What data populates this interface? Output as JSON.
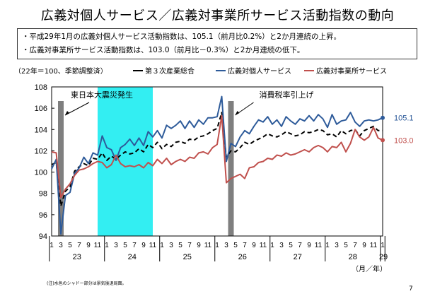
{
  "title": "広義対個人サービス／広義対事業所サービス活動指数の動向",
  "bullets": [
    "・平成29年1月の広義対個人サービス活動指数は、105.1（前月比0.2%）と2か月連続の上昇。",
    "・広義対事業所サービス活動指数は、103.0（前月比－0.3%）と2か月連続の低下。"
  ],
  "footnote": "(注)水色のシャドー部分は景気後退局面。",
  "page_number": "7",
  "chart_data": {
    "type": "line",
    "unit_note": "（22年＝100、季節調整済）",
    "x_unit": "（月／年）",
    "ylim": [
      94,
      108
    ],
    "y_ticks": [
      "94",
      "96",
      "98",
      "100",
      "102",
      "104",
      "106",
      "108"
    ],
    "month_labels": [
      "1",
      "3",
      "5",
      "7",
      "9",
      "11",
      "1",
      "3",
      "5",
      "7",
      "9",
      "11",
      "1",
      "3",
      "5",
      "7",
      "9",
      "11",
      "1",
      "3",
      "5",
      "7",
      "9",
      "11",
      "1",
      "3",
      "5",
      "7",
      "9",
      "11",
      "1",
      "3",
      "5",
      "7",
      "9",
      "11",
      "1"
    ],
    "year_labels": [
      "23",
      "24",
      "25",
      "26",
      "27",
      "28",
      "29"
    ],
    "x": [
      "23/1",
      "23/2",
      "23/3",
      "23/4",
      "23/5",
      "23/6",
      "23/7",
      "23/8",
      "23/9",
      "23/10",
      "23/11",
      "23/12",
      "24/1",
      "24/2",
      "24/3",
      "24/4",
      "24/5",
      "24/6",
      "24/7",
      "24/8",
      "24/9",
      "24/10",
      "24/11",
      "24/12",
      "25/1",
      "25/2",
      "25/3",
      "25/4",
      "25/5",
      "25/6",
      "25/7",
      "25/8",
      "25/9",
      "25/10",
      "25/11",
      "25/12",
      "26/1",
      "26/2",
      "26/3",
      "26/4",
      "26/5",
      "26/6",
      "26/7",
      "26/8",
      "26/9",
      "26/10",
      "26/11",
      "26/12",
      "27/1",
      "27/2",
      "27/3",
      "27/4",
      "27/5",
      "27/6",
      "27/7",
      "27/8",
      "27/9",
      "27/10",
      "27/11",
      "27/12",
      "28/1",
      "28/2",
      "28/3",
      "28/4",
      "28/5",
      "28/6",
      "28/7",
      "28/8",
      "28/9",
      "28/10",
      "28/11",
      "28/12",
      "29/1"
    ],
    "series": [
      {
        "name": "第３次産業総合",
        "color": "#000000",
        "dash": "6,4",
        "values": [
          100.7,
          100.9,
          96.8,
          98.2,
          98.6,
          100.1,
          100.5,
          100.8,
          100.6,
          101.3,
          101.2,
          101.8,
          101.1,
          101.5,
          101.2,
          101.6,
          101.9,
          101.7,
          101.8,
          102.2,
          101.9,
          102.6,
          102.3,
          102.8,
          102.2,
          102.6,
          102.4,
          102.8,
          102.9,
          102.7,
          103.1,
          103.0,
          103.3,
          103.4,
          103.6,
          103.9,
          104.1,
          105.6,
          101.4,
          102.0,
          101.9,
          102.3,
          102.8,
          102.6,
          102.9,
          103.1,
          103.3,
          103.6,
          103.4,
          103.3,
          103.5,
          103.8,
          103.6,
          103.4,
          103.5,
          103.8,
          103.7,
          103.8,
          104.0,
          103.9,
          103.5,
          103.6,
          103.3,
          103.9,
          103.6,
          103.9,
          104.0,
          103.4,
          103.9,
          104.1,
          104.3,
          103.9,
          103.9
        ]
      },
      {
        "name": "広義対個人サービス",
        "color": "#2E5B9A",
        "dash": "",
        "values": [
          100.3,
          101.2,
          94.2,
          97.8,
          98.1,
          99.9,
          100.4,
          101.4,
          100.8,
          101.8,
          101.6,
          103.4,
          102.3,
          102.1,
          101.1,
          102.3,
          102.6,
          103.1,
          102.5,
          103.2,
          102.5,
          103.8,
          103.3,
          103.9,
          103.2,
          104.4,
          104.1,
          104.4,
          104.8,
          104.1,
          104.8,
          104.2,
          104.9,
          104.5,
          105.1,
          105.1,
          105.2,
          107.1,
          101.0,
          102.7,
          102.4,
          103.3,
          103.9,
          103.6,
          104.3,
          104.9,
          104.7,
          105.2,
          104.5,
          104.9,
          104.3,
          105.2,
          104.8,
          104.5,
          105.0,
          104.8,
          105.3,
          104.8,
          105.4,
          105.0,
          104.2,
          105.4,
          104.5,
          104.8,
          104.9,
          105.6,
          104.7,
          104.3,
          104.8,
          104.9,
          104.8,
          104.9,
          105.1
        ]
      },
      {
        "name": "広義対事業所サービス",
        "color": "#C0504D",
        "dash": "",
        "values": [
          101.9,
          101.8,
          97.6,
          98.4,
          98.9,
          99.7,
          100.2,
          100.3,
          100.5,
          100.8,
          101.0,
          100.9,
          100.4,
          100.7,
          101.6,
          100.8,
          100.5,
          100.6,
          100.5,
          100.7,
          100.4,
          100.9,
          100.6,
          101.2,
          100.8,
          101.3,
          100.7,
          101.0,
          101.2,
          101.0,
          101.4,
          101.3,
          101.8,
          101.9,
          101.7,
          102.3,
          102.6,
          105.3,
          99.0,
          99.4,
          99.6,
          99.8,
          99.4,
          100.4,
          100.5,
          100.9,
          101.0,
          101.3,
          101.2,
          101.6,
          101.5,
          101.8,
          101.6,
          101.7,
          101.9,
          102.1,
          101.9,
          102.3,
          102.5,
          102.3,
          101.9,
          102.4,
          102.3,
          102.8,
          101.9,
          102.7,
          104.0,
          103.3,
          103.0,
          103.3,
          104.2,
          103.2,
          103.0
        ]
      }
    ],
    "end_labels": [
      "105.1",
      "103.0"
    ],
    "shaded_recession": {
      "from": "23/11",
      "to": "24/11",
      "color": "#33EEF2"
    },
    "events": [
      {
        "label": "東日本大震災発生",
        "at": "23/3"
      },
      {
        "label": "消費税率引上げ",
        "at": "26/4"
      }
    ]
  }
}
